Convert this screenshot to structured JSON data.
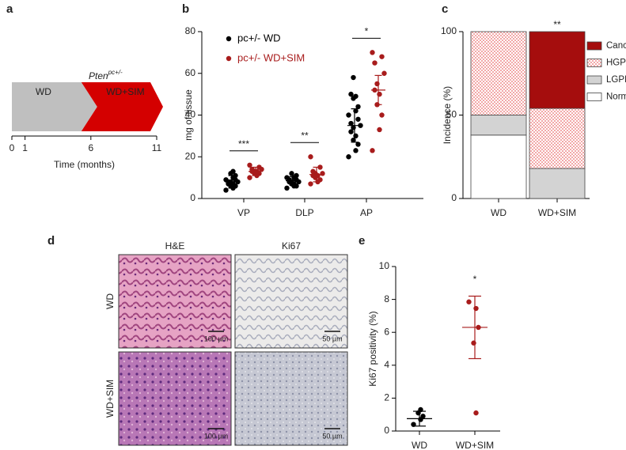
{
  "panel_labels": [
    "a",
    "b",
    "c",
    "d",
    "e"
  ],
  "timeline": {
    "title": "Pten",
    "title_superscript": "pc+/-",
    "phases": [
      {
        "label": "WD",
        "start": 0,
        "end": 6,
        "color": "#bfbfbf"
      },
      {
        "label": "WD+SIM",
        "start": 6,
        "end": 11,
        "color": "#d40000"
      }
    ],
    "xlim": [
      0,
      11
    ],
    "xticks": [
      0,
      1,
      6,
      11
    ],
    "xlabel": "Time (months)"
  },
  "micrographs": {
    "columns": [
      "H&E",
      "Ki67"
    ],
    "rows": [
      "WD",
      "WD+SIM"
    ],
    "scale_bars": [
      "100 µm",
      "50 µm"
    ]
  },
  "chart_data": [
    {
      "type": "dotplot",
      "ylabel": "mg of tissue",
      "categories": [
        "VP",
        "DLP",
        "AP"
      ],
      "ylim": [
        0,
        80
      ],
      "yticks": [
        0,
        20,
        40,
        60,
        80
      ],
      "significance": [
        "***",
        "**",
        "*"
      ],
      "legend": "top-left",
      "series": [
        {
          "name": "pc+/- WD",
          "color": "#000000",
          "values": [
            [
              4,
              5,
              6,
              6,
              7,
              7,
              8,
              8,
              8,
              9,
              9,
              10,
              11,
              12,
              13
            ],
            [
              5,
              6,
              6,
              7,
              7,
              8,
              8,
              8,
              9,
              9,
              10,
              10,
              11,
              12
            ],
            [
              20,
              23,
              26,
              28,
              30,
              32,
              34,
              35,
              36,
              38,
              40,
              42,
              44,
              48,
              49,
              50,
              58
            ]
          ],
          "mean": [
            8,
            8.5,
            35
          ],
          "sd": [
            3,
            2,
            8
          ]
        },
        {
          "name": "pc+/- WD+SIM",
          "color": "#a81c1c",
          "values": [
            [
              10,
              11,
              12,
              12,
              13,
              13,
              13,
              14,
              14,
              15,
              16
            ],
            [
              7,
              8,
              9,
              10,
              11,
              11,
              12,
              12,
              13,
              15,
              20
            ],
            [
              23,
              33,
              40,
              45,
              50,
              52,
              55,
              60,
              65,
              68,
              70
            ]
          ],
          "mean": [
            13,
            11.5,
            52
          ],
          "sd": [
            2,
            3.5,
            7
          ]
        }
      ]
    },
    {
      "type": "stacked-bar",
      "ylabel": "Incidence (%)",
      "categories": [
        "WD",
        "WD+SIM"
      ],
      "ylim": [
        0,
        100
      ],
      "yticks": [
        0,
        50,
        100
      ],
      "significance": [
        null,
        "**"
      ],
      "legend": "right",
      "series": [
        {
          "name": "Normal",
          "color": "#ffffff",
          "values": [
            38,
            0
          ]
        },
        {
          "name": "LGPIN",
          "color": "#d3d3d3",
          "values": [
            12,
            18
          ]
        },
        {
          "name": "HGPIN",
          "color": "#f2a8a8",
          "pattern": "checker",
          "values": [
            50,
            36
          ]
        },
        {
          "name": "Cancer",
          "color": "#a50d0d",
          "values": [
            0,
            46
          ]
        }
      ]
    },
    {
      "type": "dotplot",
      "ylabel": "Ki67 positivity (%)",
      "categories": [
        "WD",
        "WD+SIM"
      ],
      "ylim": [
        0,
        10
      ],
      "yticks": [
        0,
        2,
        4,
        6,
        8,
        10
      ],
      "significance": [
        null,
        "*"
      ],
      "series": [
        {
          "name": null,
          "colors": [
            "#000000",
            "#a81c1c"
          ],
          "values": [
            [
              0.4,
              0.7,
              0.9,
              1.1,
              1.3
            ],
            [
              7.85,
              7.45,
              6.3,
              5.35,
              1.1
            ]
          ],
          "mean": [
            0.75,
            6.3
          ],
          "sd": [
            0.45,
            1.9
          ]
        }
      ]
    }
  ]
}
